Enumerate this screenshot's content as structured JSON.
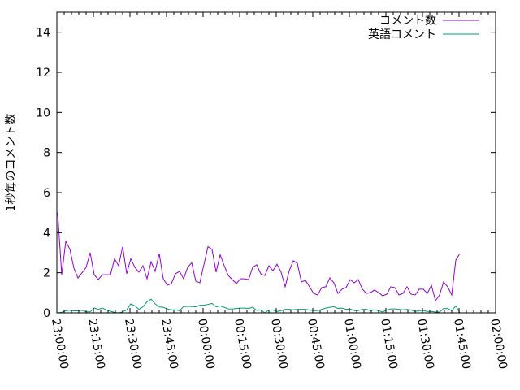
{
  "chart_data": {
    "type": "line",
    "title": "",
    "xlabel": "",
    "ylabel": "1秒毎のコメント数",
    "ylim": [
      0,
      15
    ],
    "xlim": [
      "23:00:00",
      "02:00:00"
    ],
    "grid": false,
    "legend_position": "top-right",
    "y_ticks": [
      "0",
      "2",
      "4",
      "6",
      "8",
      "10",
      "12",
      "14"
    ],
    "x_ticks": [
      "23:00:00",
      "23:15:00",
      "23:30:00",
      "23:45:00",
      "00:00:00",
      "00:15:00",
      "00:30:00",
      "00:45:00",
      "01:00:00",
      "01:15:00",
      "01:30:00",
      "01:45:00",
      "02:00:00"
    ],
    "x": [
      "23:00:20",
      "23:02:00",
      "23:03:40",
      "23:05:20",
      "23:07:00",
      "23:08:40",
      "23:10:20",
      "23:12:00",
      "23:13:40",
      "23:15:20",
      "23:17:00",
      "23:18:40",
      "23:20:20",
      "23:22:00",
      "23:23:40",
      "23:25:20",
      "23:27:00",
      "23:28:40",
      "23:30:20",
      "23:32:00",
      "23:33:40",
      "23:35:20",
      "23:37:00",
      "23:38:40",
      "23:40:20",
      "23:42:00",
      "23:43:40",
      "23:45:20",
      "23:47:00",
      "23:48:40",
      "23:50:20",
      "23:52:00",
      "23:53:40",
      "23:55:20",
      "23:57:00",
      "23:58:40",
      "00:00:20",
      "00:02:00",
      "00:03:40",
      "00:05:20",
      "00:07:00",
      "00:08:40",
      "00:10:20",
      "00:12:00",
      "00:13:40",
      "00:15:20",
      "00:17:00",
      "00:18:40",
      "00:20:20",
      "00:22:00",
      "00:23:40",
      "00:25:20",
      "00:27:00",
      "00:28:40",
      "00:30:20",
      "00:32:00",
      "00:33:40",
      "00:35:20",
      "00:37:00",
      "00:38:40",
      "00:40:20",
      "00:42:00",
      "00:43:40",
      "00:45:20",
      "00:47:00",
      "00:48:40",
      "00:50:20",
      "00:52:00",
      "00:53:40",
      "00:55:20",
      "00:57:00",
      "00:58:40",
      "01:00:20",
      "01:02:00",
      "01:03:40",
      "01:05:20",
      "01:07:00",
      "01:08:40",
      "01:10:20",
      "01:12:00",
      "01:13:40",
      "01:15:20",
      "01:17:00",
      "01:18:40",
      "01:20:20",
      "01:22:00",
      "01:23:40",
      "01:25:20",
      "01:27:00",
      "01:28:40",
      "01:30:20",
      "01:32:00",
      "01:33:40",
      "01:35:20",
      "01:37:00",
      "01:38:40",
      "01:40:20",
      "01:42:00",
      "01:43:40",
      "01:45:20"
    ],
    "series": [
      {
        "name": "コメント数",
        "color": "#9400d3",
        "values": [
          5.0,
          1.9,
          3.57,
          3.18,
          2.23,
          1.74,
          2.0,
          2.27,
          3.0,
          1.9,
          1.66,
          1.9,
          1.9,
          1.9,
          2.7,
          2.35,
          3.3,
          1.95,
          2.7,
          2.27,
          2.03,
          2.35,
          1.7,
          2.55,
          2.07,
          2.96,
          1.7,
          1.38,
          1.46,
          1.95,
          2.07,
          1.7,
          2.27,
          2.5,
          1.58,
          1.5,
          2.4,
          3.3,
          3.17,
          2.03,
          2.9,
          2.35,
          1.86,
          1.66,
          1.46,
          1.7,
          1.7,
          1.66,
          2.27,
          2.4,
          1.94,
          1.86,
          2.35,
          2.1,
          2.43,
          2.03,
          1.3,
          2.1,
          2.6,
          2.47,
          1.54,
          1.62,
          1.3,
          0.97,
          0.89,
          1.26,
          1.3,
          1.74,
          1.5,
          0.97,
          1.18,
          1.26,
          1.66,
          1.5,
          1.66,
          1.18,
          0.97,
          1.01,
          1.14,
          1.01,
          0.85,
          0.93,
          1.3,
          1.26,
          0.89,
          0.97,
          1.3,
          0.93,
          0.89,
          1.18,
          1.18,
          0.97,
          1.38,
          0.61,
          0.89,
          1.54,
          1.3,
          0.89,
          2.63,
          2.96
        ]
      },
      {
        "name": "英語コメント",
        "color": "#009e73",
        "values": [
          0,
          0.03,
          0.1,
          0.13,
          0.1,
          0.1,
          0.13,
          0.05,
          0.05,
          0.24,
          0.18,
          0.24,
          0.15,
          0.08,
          0.02,
          0,
          0.05,
          0.15,
          0.45,
          0.35,
          0.18,
          0.3,
          0.55,
          0.68,
          0.45,
          0.3,
          0.28,
          0.2,
          0.15,
          0.15,
          0.1,
          0.32,
          0.32,
          0.32,
          0.3,
          0.38,
          0.38,
          0.42,
          0.47,
          0.3,
          0.35,
          0.28,
          0.2,
          0.19,
          0.22,
          0.24,
          0.24,
          0.22,
          0.28,
          0.12,
          0.14,
          0,
          0.14,
          0.14,
          0.07,
          0.11,
          0.18,
          0.18,
          0.15,
          0.18,
          0.18,
          0.18,
          0.14,
          0.11,
          0.11,
          0.18,
          0.24,
          0.28,
          0.31,
          0.22,
          0.24,
          0.18,
          0.2,
          0.11,
          0.11,
          0.18,
          0.18,
          0.11,
          0.15,
          0.11,
          0.04,
          0.14,
          0.2,
          0.2,
          0.18,
          0.15,
          0.18,
          0.14,
          0.07,
          0.11,
          0.11,
          0.07,
          0.07,
          0.04,
          0.04,
          0.22,
          0.22,
          0.11,
          0.35,
          0
        ]
      }
    ]
  }
}
